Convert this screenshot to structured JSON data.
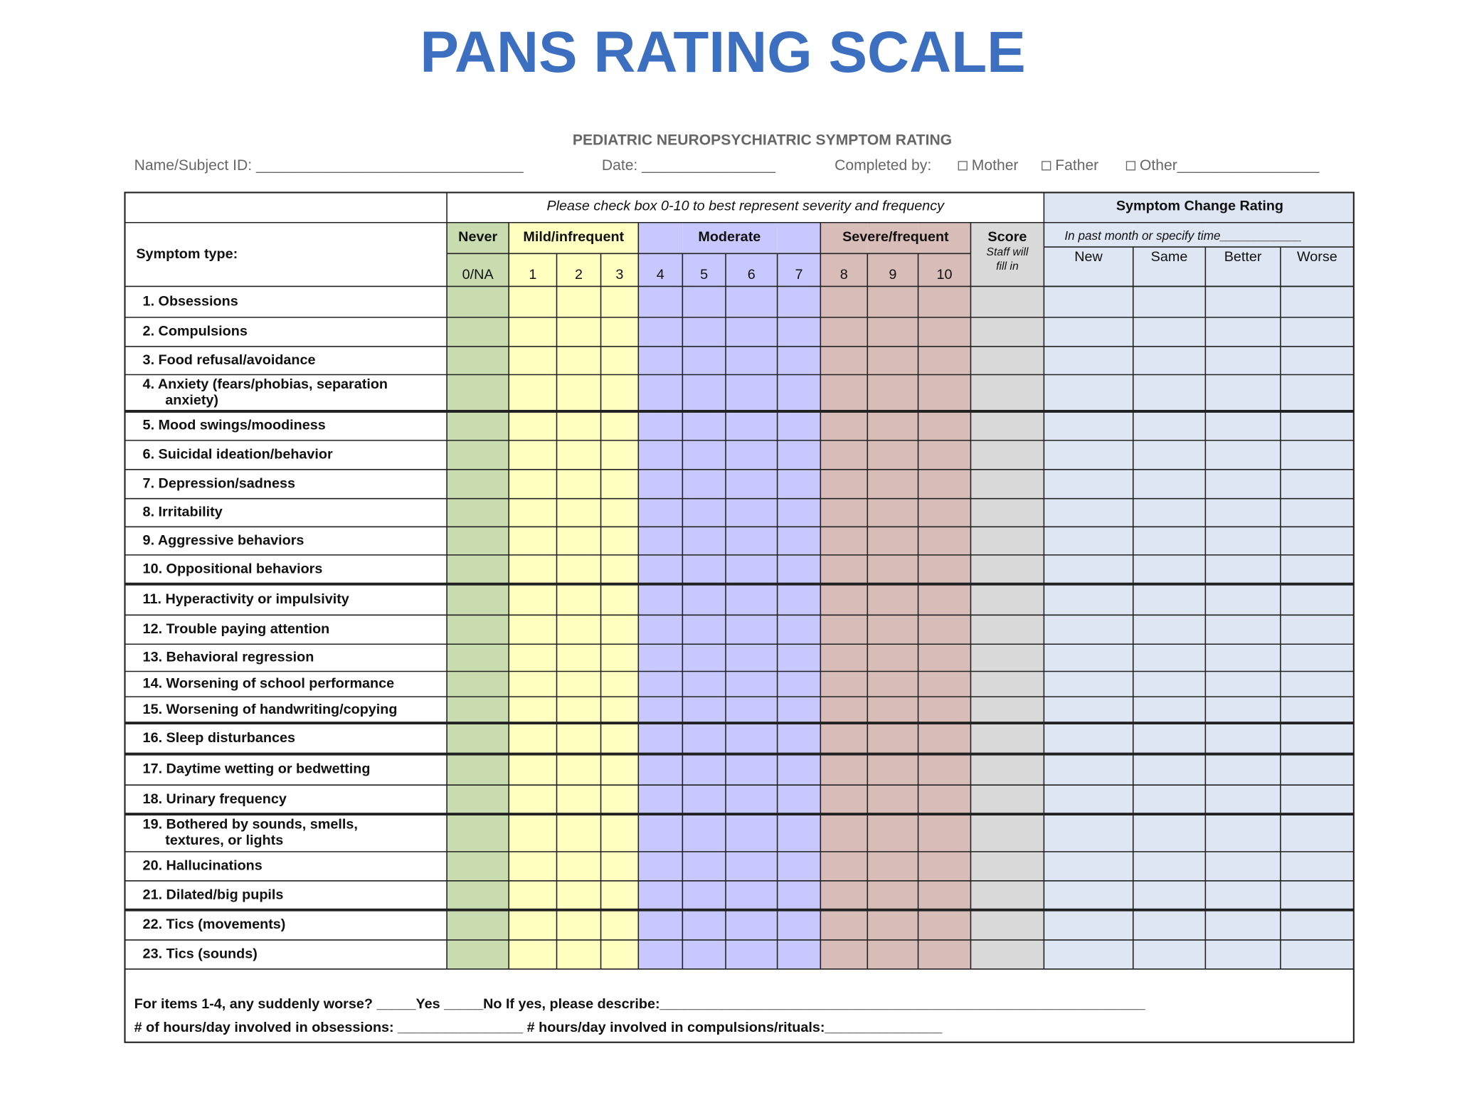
{
  "title": "PANS RATING SCALE",
  "form": {
    "heading": "PEDIATRIC NEUROPSYCHIATRIC SYMPTOM RATING",
    "name_field": "Name/Subject ID: ________________________________",
    "date_field": "Date: ________________",
    "completed_by": "Completed by:",
    "options": [
      "Mother",
      "Father",
      "Other_________________"
    ],
    "instruction": "Please check box 0-10 to best represent severity and frequency",
    "symptom_header": "Symptom type:",
    "groups": [
      "Never",
      "Mild/infrequent",
      "Moderate",
      "Severe/frequent"
    ],
    "score": "Score",
    "score_note": [
      "Staff will",
      "fill in"
    ],
    "scale": [
      "0/NA",
      "1",
      "2",
      "3",
      "4",
      "5",
      "6",
      "7",
      "8",
      "9",
      "10"
    ],
    "change_title": "Symptom Change Rating",
    "change_note": "In past month or specify time____________",
    "change_columns": [
      "New",
      "Same",
      "Better",
      "Worse"
    ],
    "symptoms": [
      [
        "1.  Obsessions"
      ],
      [
        "2.  Compulsions"
      ],
      [
        "3.  Food refusal/avoidance"
      ],
      [
        "4.  Anxiety (fears/phobias, separation",
        "anxiety)"
      ],
      [
        "5.  Mood swings/moodiness"
      ],
      [
        "6.  Suicidal ideation/behavior"
      ],
      [
        "7.  Depression/sadness"
      ],
      [
        "8.  Irritability"
      ],
      [
        "9.  Aggressive behaviors"
      ],
      [
        "10. Oppositional behaviors"
      ],
      [
        "11. Hyperactivity or impulsivity"
      ],
      [
        "12. Trouble paying attention"
      ],
      [
        "13. Behavioral regression"
      ],
      [
        "14. Worsening of school performance"
      ],
      [
        "15. Worsening of handwriting/copying"
      ],
      [
        "16. Sleep disturbances"
      ],
      [
        "17. Daytime wetting or bedwetting"
      ],
      [
        "18. Urinary frequency"
      ],
      [
        "19. Bothered by sounds, smells,",
        "textures, or lights"
      ],
      [
        "20. Hallucinations"
      ],
      [
        "21. Dilated/big pupils"
      ],
      [
        "22. Tics (movements)"
      ],
      [
        "23. Tics (sounds)"
      ]
    ],
    "footer": [
      "For items 1-4, any suddenly worse? _____Yes _____No  If yes, please describe:______________________________________________________________",
      "# of hours/day involved in obsessions: ________________  # hours/day involved in compulsions/rituals:_______________"
    ]
  }
}
